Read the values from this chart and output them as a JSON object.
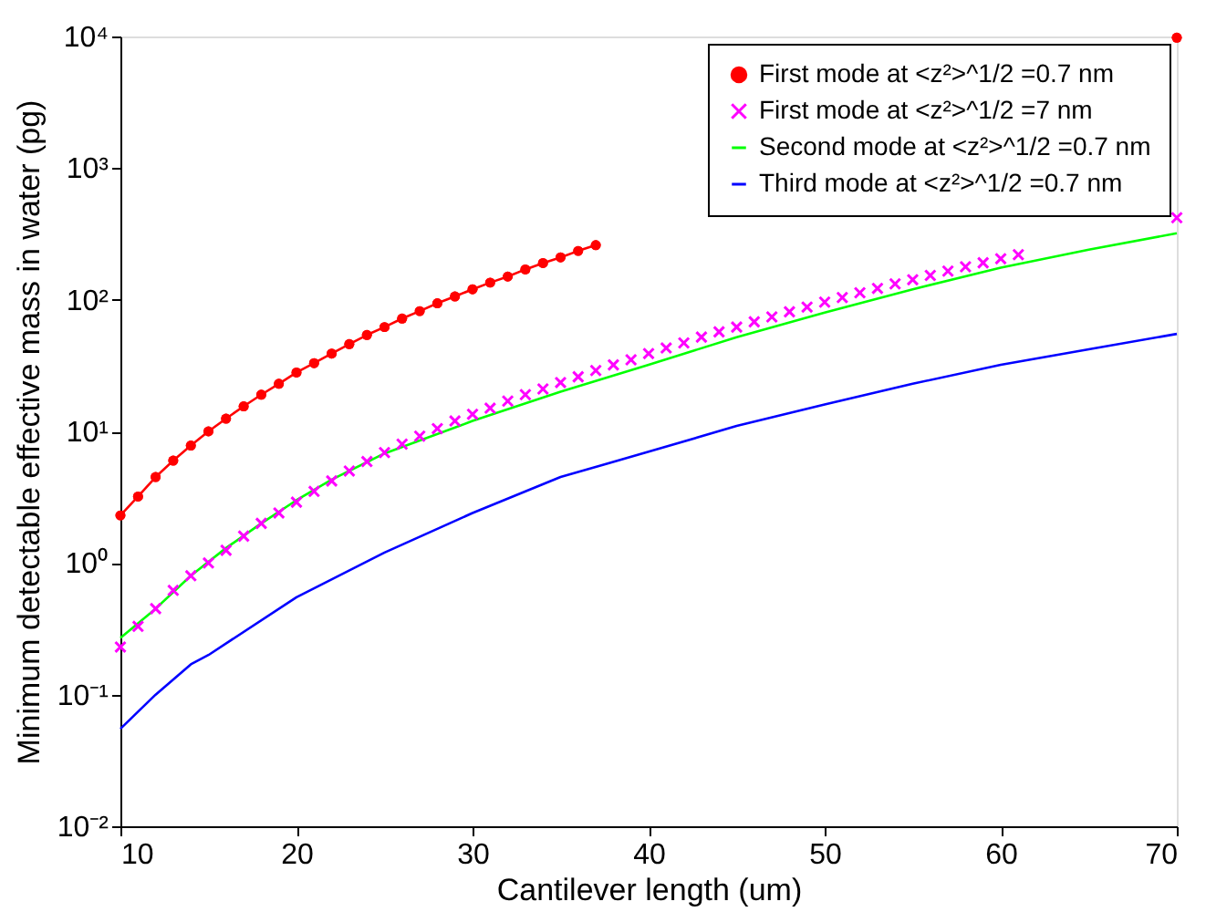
{
  "chart_data": {
    "type": "line",
    "xlabel": "Cantilever length (um)",
    "ylabel": "Minimum detectable effective mass in water (pg)",
    "x": [
      10,
      11,
      12,
      13,
      14,
      15,
      16,
      17,
      18,
      19,
      20,
      21,
      22,
      23,
      24,
      25,
      26,
      27,
      28,
      29,
      30,
      31,
      32,
      33,
      34,
      35,
      36,
      37,
      38,
      39,
      40,
      41,
      42,
      43,
      44,
      45,
      46,
      47,
      48,
      49,
      50,
      51,
      52,
      53,
      54,
      55,
      56,
      57,
      58,
      59,
      60,
      61,
      62,
      63,
      64,
      65,
      66,
      67,
      68,
      69,
      70
    ],
    "series": [
      {
        "name": "First mode at <z²>^1/2 =0.7 nm",
        "color": "#ff0000",
        "marker": "circle",
        "values": [
          2.3,
          3.2,
          4.5,
          6.0,
          7.8,
          10,
          12.5,
          15.5,
          19,
          23,
          28,
          33,
          39,
          46,
          54,
          62,
          72,
          82,
          94,
          106,
          120,
          135,
          150,
          170,
          190,
          210,
          235,
          260,
          null,
          null,
          null,
          null,
          null,
          null,
          null,
          null,
          null,
          null,
          null,
          null,
          null,
          null,
          null,
          null,
          null,
          null,
          null,
          null,
          null,
          null,
          null,
          null,
          null,
          null,
          null,
          null,
          null,
          null,
          null,
          null,
          9800
        ]
      },
      {
        "name": "First mode at <z²>^1/2 =7 nm",
        "color": "#ff00ff",
        "type": "scatter",
        "marker": "cross",
        "values": [
          0.23,
          0.33,
          0.45,
          0.62,
          0.8,
          1.0,
          1.25,
          1.6,
          2.0,
          2.4,
          2.9,
          3.5,
          4.2,
          5.0,
          5.9,
          6.9,
          8.0,
          9.2,
          10.5,
          12,
          13.5,
          15,
          17,
          19,
          21,
          23.5,
          26,
          29,
          32,
          35,
          39,
          43,
          47,
          52,
          57,
          62,
          68,
          74,
          81,
          88,
          96,
          104,
          113,
          122,
          132,
          142,
          153,
          165,
          178,
          191,
          205,
          220,
          null,
          null,
          null,
          null,
          null,
          null,
          null,
          null,
          420
        ]
      },
      {
        "name": "Second mode at <z²>^1/2 =0.7 nm",
        "color": "#00ff00",
        "x": [
          10,
          12,
          14,
          16,
          18,
          20,
          22,
          25,
          30,
          35,
          40,
          45,
          50,
          55,
          60,
          65,
          70
        ],
        "values": [
          0.27,
          0.45,
          0.8,
          1.3,
          2.0,
          3.0,
          4.3,
          6.8,
          12,
          20,
          32,
          52,
          80,
          120,
          175,
          240,
          320
        ]
      },
      {
        "name": "Third mode at <z²>^1/2 =0.7 nm",
        "color": "#0000ff",
        "x": [
          10,
          12,
          14,
          15,
          20,
          25,
          30,
          35,
          40,
          45,
          50,
          55,
          60,
          65,
          70
        ],
        "values": [
          0.055,
          0.1,
          0.17,
          0.2,
          0.55,
          1.2,
          2.4,
          4.5,
          7,
          11,
          16,
          23,
          32,
          42,
          55
        ]
      }
    ],
    "log": "y",
    "xlim": [
      10,
      70
    ],
    "xticks": [
      10,
      20,
      30,
      40,
      50,
      60,
      70
    ],
    "ylim": [
      0.01,
      10000
    ],
    "yticks": [
      {
        "value": 0.01,
        "label": "10⁻²"
      },
      {
        "value": 0.1,
        "label": "10⁻¹"
      },
      {
        "value": 1,
        "label": "10⁰"
      },
      {
        "value": 10,
        "label": "10¹"
      },
      {
        "value": 100,
        "label": "10²"
      },
      {
        "value": 1000,
        "label": "10³"
      },
      {
        "value": 10000,
        "label": "10⁴"
      }
    ],
    "grid": false,
    "legend": "top right"
  }
}
